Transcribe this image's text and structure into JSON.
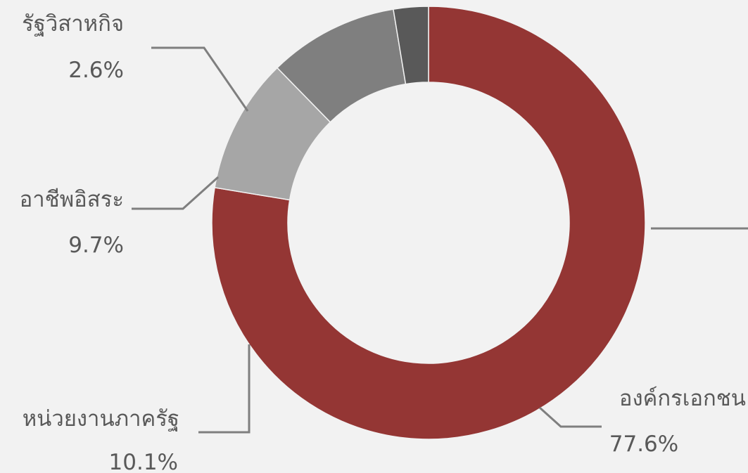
{
  "chart_data": {
    "type": "pie",
    "variant": "doughnut",
    "title": "",
    "slices": [
      {
        "label": "องค์กรเอกชน",
        "value": 77.6,
        "display": "77.6%",
        "color": "#943634"
      },
      {
        "label": "หน่วยงานภาครัฐ",
        "value": 10.1,
        "display": "10.1%",
        "color": "#a6a6a6"
      },
      {
        "label": "อาชีพอิสระ",
        "value": 9.7,
        "display": "9.7%",
        "color": "#7f7f7f"
      },
      {
        "label": "รัฐวิสาหกิจ",
        "value": 2.6,
        "display": "2.6%",
        "color": "#595959"
      }
    ],
    "start": "top, clockwise",
    "leader_line_color": "#7f7f7f",
    "label_color": "#595959",
    "background": "#f2f2f2",
    "legend": "none",
    "grid": false
  }
}
